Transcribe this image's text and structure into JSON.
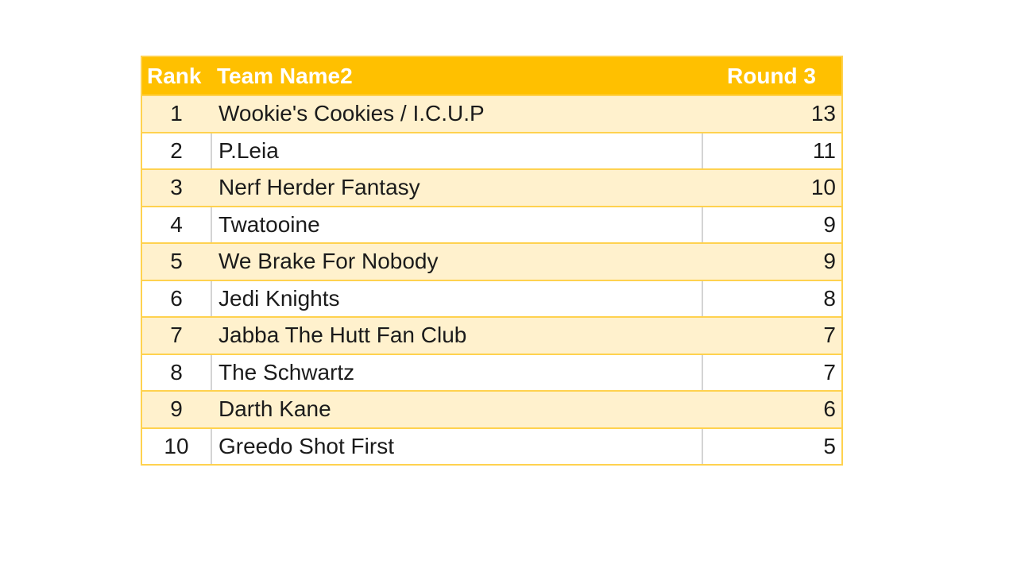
{
  "chart_data": {
    "type": "table",
    "columns": [
      "Rank",
      "Team Name2",
      "Round 3"
    ],
    "rows": [
      {
        "rank": "1",
        "team": "Wookie's Cookies / I.C.U.P",
        "round3": "13"
      },
      {
        "rank": "2",
        "team": "P.Leia",
        "round3": "11"
      },
      {
        "rank": "3",
        "team": "Nerf Herder Fantasy",
        "round3": "10"
      },
      {
        "rank": "4",
        "team": "Twatooine",
        "round3": "9"
      },
      {
        "rank": "5",
        "team": "We Brake For Nobody",
        "round3": "9"
      },
      {
        "rank": "6",
        "team": "Jedi Knights",
        "round3": "8"
      },
      {
        "rank": "7",
        "team": "Jabba The Hutt Fan Club",
        "round3": "7"
      },
      {
        "rank": "8",
        "team": "The Schwartz",
        "round3": "7"
      },
      {
        "rank": "9",
        "team": "Darth Kane",
        "round3": "6"
      },
      {
        "rank": "10",
        "team": "Greedo Shot First",
        "round3": "5"
      }
    ]
  },
  "styles": {
    "header_bg": "#FFC000",
    "header_text": "#FFFFFF",
    "band_row_bg": "#FFF1CD",
    "plain_row_bg": "#FFFFFF",
    "row_border": "#FFD24F",
    "column_divider": "#D4D4D4",
    "text_color": "#1B1B1B"
  }
}
